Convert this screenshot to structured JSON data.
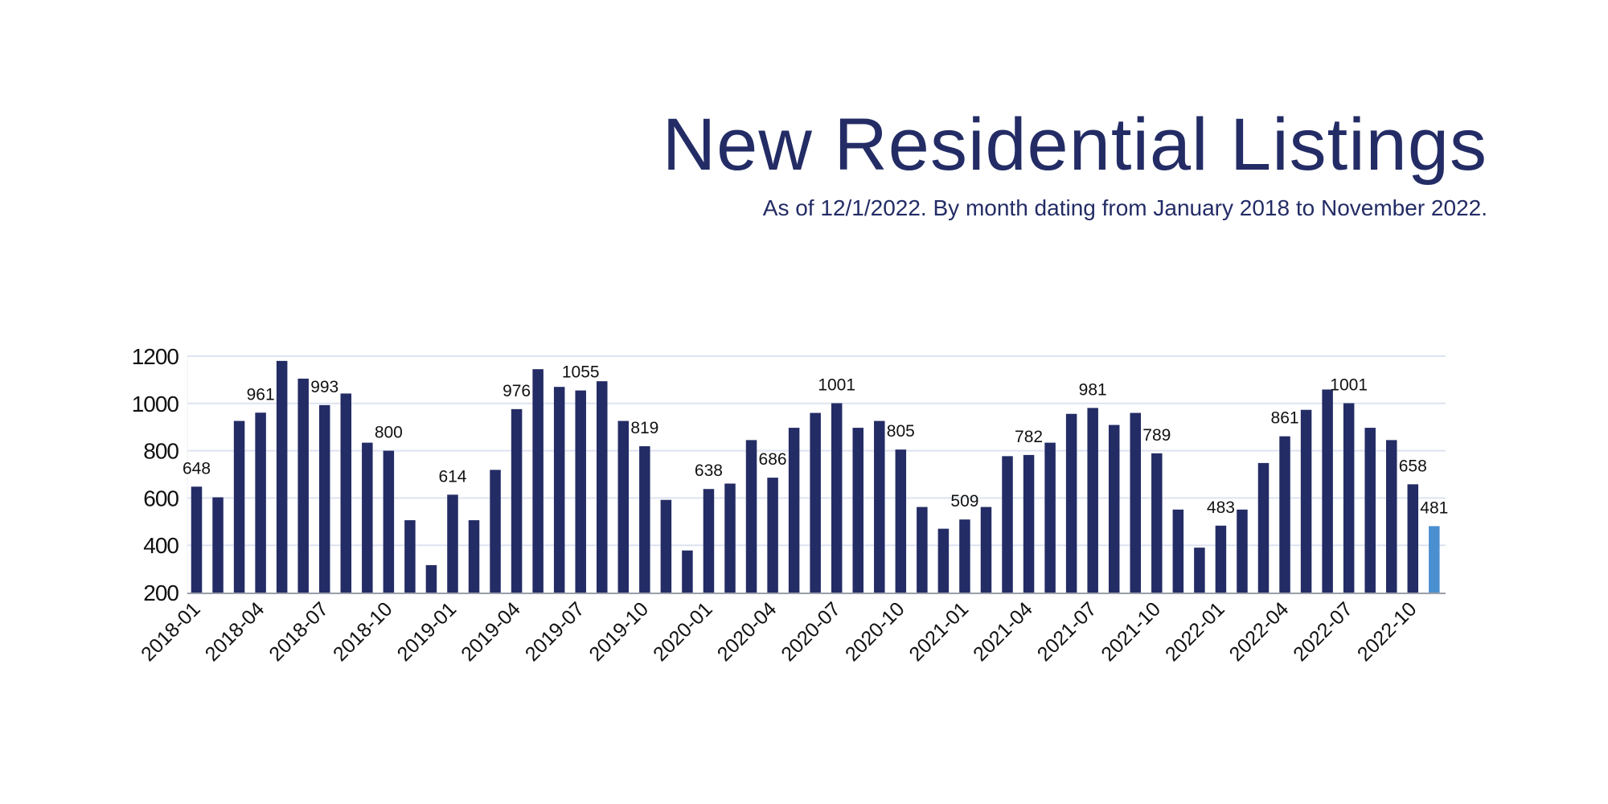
{
  "chart_data": {
    "type": "bar",
    "title": "New Residential Listings",
    "subtitle": "As of 12/1/2022. By month dating from January 2018 to November 2022.",
    "xlabel": "",
    "ylabel": "",
    "ylim": [
      200,
      1200
    ],
    "yticks": [
      200,
      400,
      600,
      800,
      1000,
      1200
    ],
    "grid": true,
    "legend": "none",
    "bar_color": "#232c65",
    "highlight_color": "#4a8fd0",
    "highlight_index": 58,
    "categories": [
      "2018-01",
      "2018-02",
      "2018-03",
      "2018-04",
      "2018-05",
      "2018-06",
      "2018-07",
      "2018-08",
      "2018-09",
      "2018-10",
      "2018-11",
      "2018-12",
      "2019-01",
      "2019-02",
      "2019-03",
      "2019-04",
      "2019-05",
      "2019-06",
      "2019-07",
      "2019-08",
      "2019-09",
      "2019-10",
      "2019-11",
      "2019-12",
      "2020-01",
      "2020-02",
      "2020-03",
      "2020-04",
      "2020-05",
      "2020-06",
      "2020-07",
      "2020-08",
      "2020-09",
      "2020-10",
      "2020-11",
      "2020-12",
      "2021-01",
      "2021-02",
      "2021-03",
      "2021-04",
      "2021-05",
      "2021-06",
      "2021-07",
      "2021-08",
      "2021-09",
      "2021-10",
      "2021-11",
      "2021-12",
      "2022-01",
      "2022-02",
      "2022-03",
      "2022-04",
      "2022-05",
      "2022-06",
      "2022-07",
      "2022-08",
      "2022-09",
      "2022-10",
      "2022-11"
    ],
    "tick_labels": [
      "2018-01",
      "2018-04",
      "2018-07",
      "2018-10",
      "2019-01",
      "2019-04",
      "2019-07",
      "2019-10",
      "2020-01",
      "2020-04",
      "2020-07",
      "2020-10",
      "2021-01",
      "2021-04",
      "2021-07",
      "2021-10",
      "2022-01",
      "2022-04",
      "2022-07",
      "2022-10"
    ],
    "values": [
      648,
      603,
      926,
      961,
      1180,
      1105,
      993,
      1042,
      834,
      800,
      506,
      316,
      614,
      506,
      719,
      976,
      1145,
      1070,
      1055,
      1094,
      926,
      819,
      592,
      378,
      638,
      661,
      845,
      686,
      897,
      960,
      1001,
      897,
      926,
      805,
      562,
      470,
      509,
      562,
      777,
      782,
      834,
      956,
      981,
      909,
      960,
      789,
      551,
      390,
      483,
      551,
      748,
      861,
      973,
      1059,
      1001,
      897,
      845,
      658,
      481
    ],
    "data_labels": [
      {
        "category": "2018-01",
        "text": "648"
      },
      {
        "category": "2018-04",
        "text": "961"
      },
      {
        "category": "2018-07",
        "text": "993"
      },
      {
        "category": "2018-10",
        "text": "800"
      },
      {
        "category": "2019-01",
        "text": "614"
      },
      {
        "category": "2019-04",
        "text": "976"
      },
      {
        "category": "2019-07",
        "text": "1055"
      },
      {
        "category": "2019-10",
        "text": "819"
      },
      {
        "category": "2020-01",
        "text": "638"
      },
      {
        "category": "2020-04",
        "text": "686"
      },
      {
        "category": "2020-07",
        "text": "1001"
      },
      {
        "category": "2020-10",
        "text": "805"
      },
      {
        "category": "2021-01",
        "text": "509"
      },
      {
        "category": "2021-04",
        "text": "782"
      },
      {
        "category": "2021-07",
        "text": "981"
      },
      {
        "category": "2021-10",
        "text": "789"
      },
      {
        "category": "2022-01",
        "text": "483"
      },
      {
        "category": "2022-04",
        "text": "861"
      },
      {
        "category": "2022-07",
        "text": "1001"
      },
      {
        "category": "2022-10",
        "text": "658"
      },
      {
        "category": "2022-11",
        "text": "481"
      }
    ]
  }
}
